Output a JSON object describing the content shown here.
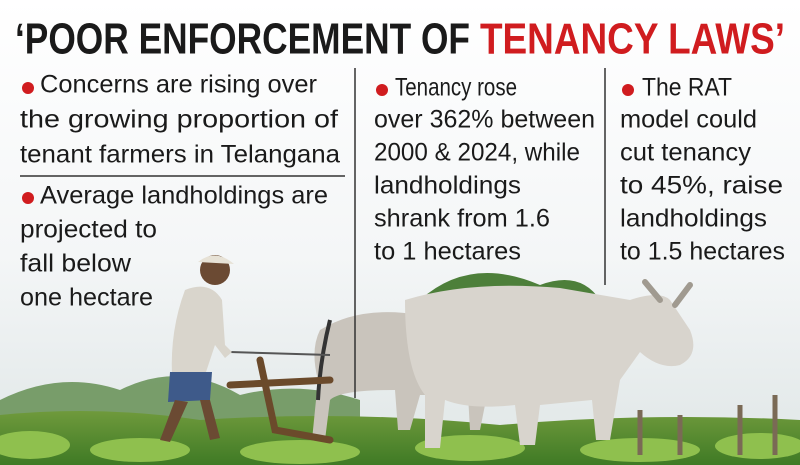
{
  "header": {
    "title_black": "‘POOR ENFORCEMENT OF",
    "title_red": "TENANCY LAWS’"
  },
  "columns": [
    {
      "bullets": [
        {
          "lines": [
            "Concerns are rising over",
            "the growing proportion of",
            "tenant farmers in Telangana"
          ]
        },
        {
          "lines": [
            "Average landholdings are",
            "projected to",
            "fall below",
            "one hectare"
          ]
        }
      ]
    },
    {
      "bullets": [
        {
          "lines": [
            "Tenancy rose",
            "over 362% between",
            "2000 & 2024, while",
            "landholdings",
            "shrank from 1.6",
            "to 1 hectares"
          ]
        }
      ]
    },
    {
      "bullets": [
        {
          "lines": [
            "The RAT",
            "model could",
            "cut tenancy",
            "to 45%, raise",
            "landholdings",
            "to 1.5 hectares"
          ]
        }
      ]
    }
  ]
}
